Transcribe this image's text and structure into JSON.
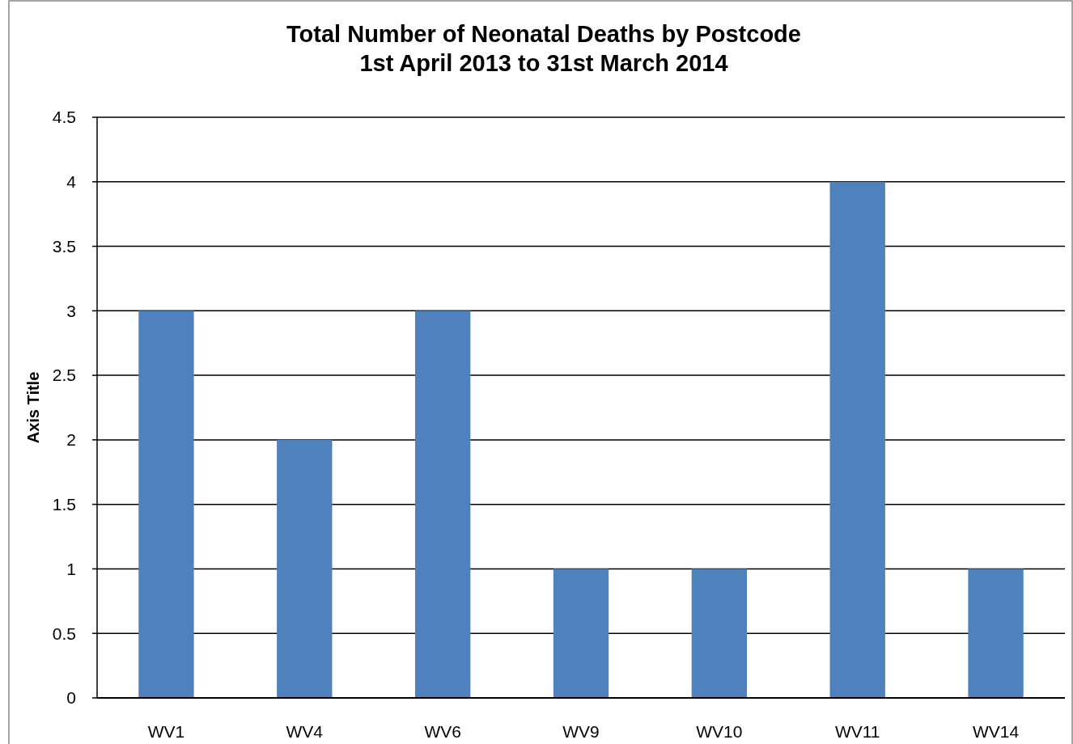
{
  "chart_data": {
    "type": "bar",
    "title": "Total Number of Neonatal Deaths by Postcode",
    "subtitle": "1st April 2013 to 31st March 2014",
    "ylabel": "Axis Title",
    "categories": [
      "WV1",
      "WV4",
      "WV6",
      "WV9",
      "WV10",
      "WV11",
      "WV14"
    ],
    "values": [
      3,
      2,
      3,
      1,
      1,
      4,
      1
    ],
    "color": "#4f81bd",
    "ylim": [
      0,
      4.5
    ],
    "yticks": [
      0,
      0.5,
      1,
      1.5,
      2,
      2.5,
      3,
      3.5,
      4,
      4.5
    ],
    "grid": "y"
  }
}
